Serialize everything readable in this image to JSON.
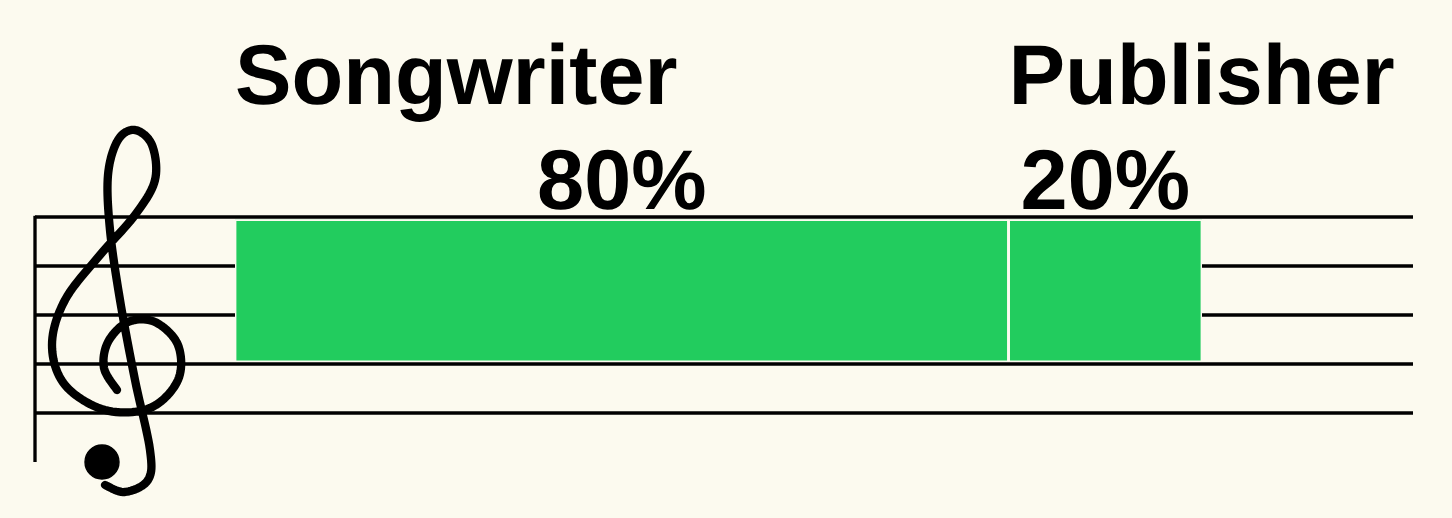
{
  "chart_data": {
    "type": "bar",
    "orientation": "horizontal",
    "stacked": true,
    "categories": [
      null
    ],
    "series": [
      {
        "name": "Songwriter",
        "color": "#22cc5e",
        "values": [
          80
        ],
        "value_labels": [
          "80%"
        ]
      },
      {
        "name": "Publisher",
        "color": "#22cc5e",
        "values": [
          20
        ],
        "value_labels": [
          "20%"
        ]
      }
    ]
  }
}
